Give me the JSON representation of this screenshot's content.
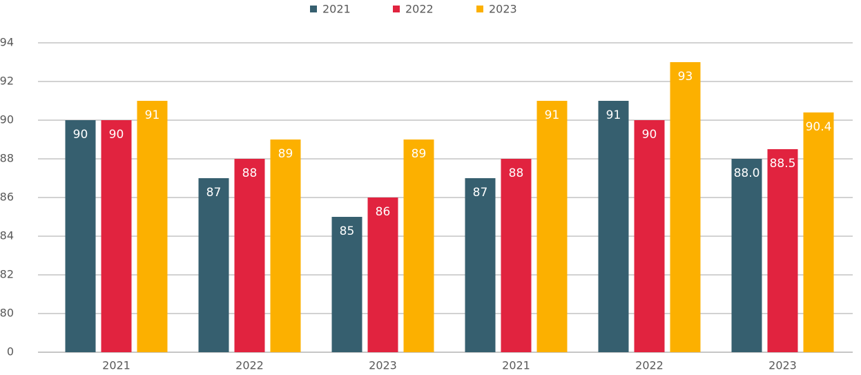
{
  "chart_data": {
    "type": "bar",
    "categories": [
      "2021",
      "2022",
      "2023",
      "2021",
      "2022",
      "2023"
    ],
    "series": [
      {
        "name": "2021",
        "color": "#365f6f",
        "values": [
          90,
          87,
          85,
          87,
          91,
          88
        ],
        "value_labels": [
          "90",
          "87",
          "85",
          "87",
          "91",
          "88.0"
        ]
      },
      {
        "name": "2022",
        "color": "#e1233f",
        "values": [
          90,
          88,
          86,
          88,
          90,
          88.5
        ]
      },
      {
        "name": "2023",
        "color": "#fcb000",
        "values": [
          91,
          89,
          89,
          91,
          93,
          90.4
        ]
      }
    ],
    "ylim": [
      0,
      94
    ],
    "yticks": [
      0,
      80,
      82,
      84,
      86,
      88,
      90,
      92,
      94
    ],
    "axis_break": true,
    "grid": true,
    "legend": "top"
  }
}
